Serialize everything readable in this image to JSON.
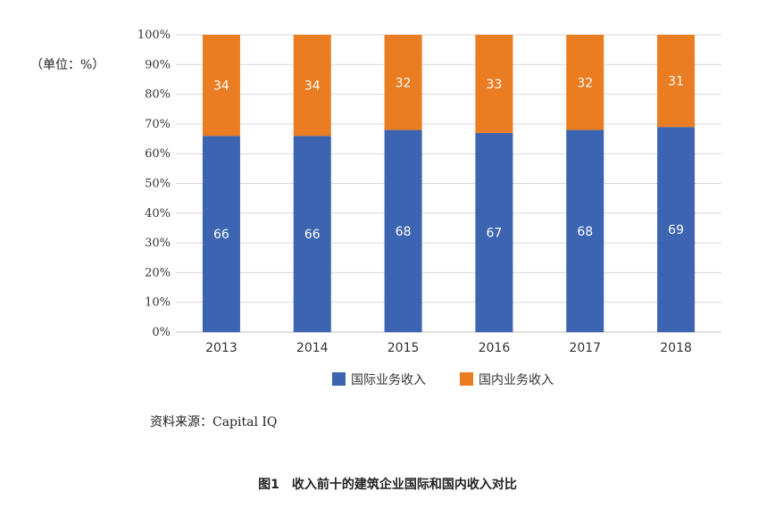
{
  "unit_label": "（单位：%）",
  "source_note": "资料来源：Capital IQ",
  "figure_caption": "图1　收入前十的建筑企业国际和国内收入对比",
  "colors": {
    "international": "#3c64b0",
    "domestic": "#ea7c21",
    "grid": "#d9d9d9",
    "axis": "#bfbfbf",
    "bar_label": "#ffffff"
  },
  "chart_data": {
    "type": "bar",
    "stacked": true,
    "categories": [
      "2013",
      "2014",
      "2015",
      "2016",
      "2017",
      "2018"
    ],
    "series": [
      {
        "name": "国际业务收入",
        "values": [
          66,
          66,
          68,
          67,
          68,
          69
        ]
      },
      {
        "name": "国内业务收入",
        "values": [
          34,
          34,
          32,
          33,
          32,
          31
        ]
      }
    ],
    "ylim": [
      0,
      100
    ],
    "yticks": [
      "0%",
      "10%",
      "20%",
      "30%",
      "40%",
      "50%",
      "60%",
      "70%",
      "80%",
      "90%",
      "100%"
    ],
    "grid": true,
    "legend": "bottom-center"
  }
}
